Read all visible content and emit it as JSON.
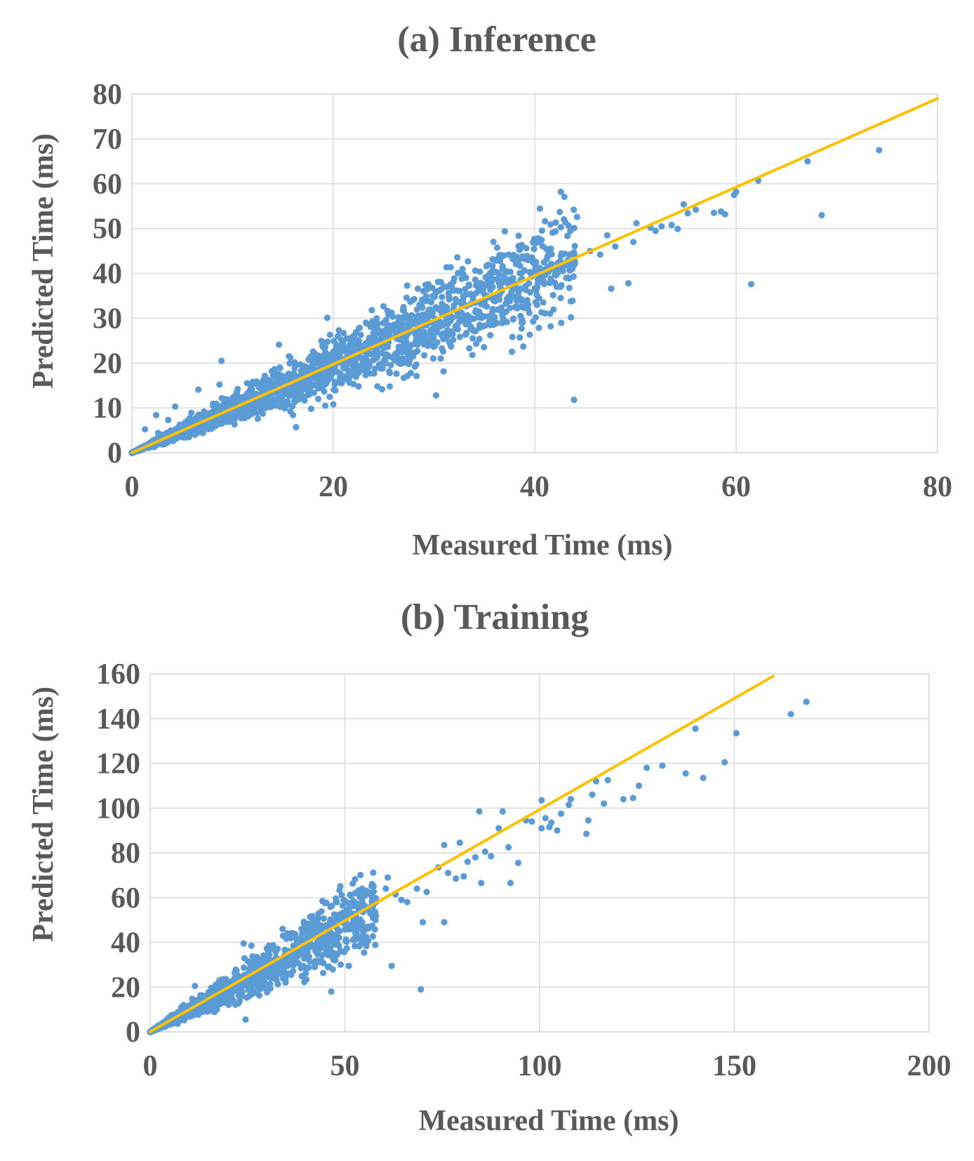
{
  "colors": {
    "points": "#5b9bd5",
    "fit_line": "#ffc000",
    "text": "#595959",
    "grid": "#d9d9d9"
  },
  "chart_data": [
    {
      "type": "scatter",
      "title": "(a) Inference",
      "xlabel": "Measured Time (ms)",
      "ylabel": "Predicted Time (ms)",
      "xlim": [
        0,
        80
      ],
      "ylim": [
        0,
        80
      ],
      "xticks": [
        0,
        20,
        40,
        60,
        80
      ],
      "yticks": [
        0,
        10,
        20,
        30,
        40,
        50,
        60,
        70,
        80
      ],
      "grid": true,
      "reference_line": {
        "x": [
          0,
          80
        ],
        "y": [
          0,
          79
        ]
      },
      "dense_band": {
        "x_range": [
          0,
          44
        ],
        "slope": 0.98,
        "spread_frac": 0.15,
        "count": 2600
      },
      "points": [
        [
          74.2,
          67.5
        ],
        [
          67.1,
          65.0
        ],
        [
          68.5,
          53.0
        ],
        [
          61.5,
          37.6
        ],
        [
          62.2,
          60.7
        ],
        [
          60.0,
          58.2
        ],
        [
          59.8,
          57.5
        ],
        [
          58.5,
          53.8
        ],
        [
          58.9,
          53.2
        ],
        [
          57.8,
          53.5
        ],
        [
          56.0,
          54.2
        ],
        [
          55.2,
          53.4
        ],
        [
          54.8,
          55.4
        ],
        [
          54.2,
          49.9
        ],
        [
          53.6,
          50.8
        ],
        [
          52.6,
          50.5
        ],
        [
          52.0,
          49.5
        ],
        [
          51.5,
          50.2
        ],
        [
          50.1,
          51.2
        ],
        [
          49.8,
          47.0
        ],
        [
          49.3,
          37.8
        ],
        [
          48.0,
          46.0
        ],
        [
          47.6,
          36.6
        ],
        [
          47.2,
          48.5
        ],
        [
          46.5,
          44.2
        ],
        [
          45.5,
          45.0
        ],
        [
          44.2,
          52.6
        ],
        [
          43.9,
          11.8
        ],
        [
          43.6,
          30.2
        ],
        [
          42.6,
          58.2
        ],
        [
          42.8,
          40.5
        ],
        [
          41.6,
          45.5
        ],
        [
          40.5,
          41.2
        ],
        [
          39.8,
          40.0
        ],
        [
          38.8,
          43.8
        ],
        [
          38.4,
          48.4
        ],
        [
          38.6,
          30.5
        ],
        [
          37.4,
          44.2
        ],
        [
          36.8,
          41.0
        ],
        [
          35.2,
          41.6
        ],
        [
          34.8,
          33.2
        ],
        [
          34.1,
          38.6
        ],
        [
          32.8,
          32.8
        ],
        [
          31.5,
          34.2
        ],
        [
          30.2,
          12.8
        ],
        [
          29.6,
          32.0
        ],
        [
          28.3,
          28.5
        ],
        [
          28.1,
          19.2
        ],
        [
          27.5,
          19.8
        ],
        [
          26.8,
          28.6
        ],
        [
          25.3,
          26.4
        ],
        [
          24.3,
          28.4
        ],
        [
          23.4,
          20.5
        ],
        [
          22.5,
          23.0
        ],
        [
          21.5,
          18.4
        ],
        [
          20.2,
          19.5
        ],
        [
          19.4,
          30.1
        ],
        [
          19.2,
          10.5
        ],
        [
          18.5,
          12.0
        ],
        [
          17.8,
          9.8
        ],
        [
          16.8,
          18.2
        ],
        [
          16.2,
          16.5
        ],
        [
          15.6,
          21.5
        ],
        [
          14.6,
          24.1
        ],
        [
          14.5,
          15.8
        ],
        [
          13.8,
          12.4
        ],
        [
          13.3,
          10.0
        ],
        [
          12.5,
          7.6
        ],
        [
          12.0,
          13.2
        ],
        [
          11.5,
          9.1
        ],
        [
          10.5,
          14.2
        ],
        [
          9.6,
          11.8
        ],
        [
          8.9,
          20.5
        ],
        [
          8.4,
          6.1
        ],
        [
          8.7,
          15.2
        ],
        [
          7.6,
          5.3
        ],
        [
          6.6,
          14.1
        ],
        [
          5.9,
          8.9
        ],
        [
          5.2,
          3.4
        ],
        [
          4.3,
          10.3
        ],
        [
          3.6,
          7.3
        ],
        [
          2.6,
          4.4
        ],
        [
          2.4,
          8.4
        ],
        [
          1.3,
          5.2
        ],
        [
          0.8,
          0.9
        ],
        [
          0.3,
          0.4
        ],
        [
          16.3,
          5.7
        ],
        [
          16.0,
          8.4
        ],
        [
          20.0,
          10.8
        ],
        [
          31.4,
          29.8
        ]
      ]
    },
    {
      "type": "scatter",
      "title": "(b) Training",
      "xlabel": "Measured Time (ms)",
      "ylabel": "Predicted Time (ms)",
      "xlim": [
        0,
        200
      ],
      "ylim": [
        0,
        160
      ],
      "xticks": [
        0,
        50,
        100,
        150,
        200
      ],
      "yticks": [
        0,
        20,
        40,
        60,
        80,
        100,
        120,
        140,
        160
      ],
      "grid": true,
      "reference_line": {
        "x": [
          0,
          160
        ],
        "y": [
          0,
          159
        ]
      },
      "dense_band": {
        "x_range": [
          0,
          58
        ],
        "slope": 0.95,
        "spread_frac": 0.17,
        "count": 1500
      },
      "points": [
        [
          168.5,
          147.5
        ],
        [
          164.5,
          142.0
        ],
        [
          150.5,
          133.5
        ],
        [
          147.5,
          120.5
        ],
        [
          142.0,
          113.5
        ],
        [
          140.0,
          135.5
        ],
        [
          137.5,
          115.5
        ],
        [
          131.5,
          119.0
        ],
        [
          127.5,
          118.0
        ],
        [
          125.5,
          110.0
        ],
        [
          124.0,
          104.5
        ],
        [
          121.5,
          104.0
        ],
        [
          117.5,
          112.5
        ],
        [
          116.5,
          102.0
        ],
        [
          114.5,
          112.0
        ],
        [
          112.5,
          94.5
        ],
        [
          112.0,
          88.5
        ],
        [
          113.5,
          106.0
        ],
        [
          108.0,
          104.0
        ],
        [
          107.5,
          101.5
        ],
        [
          105.5,
          97.5
        ],
        [
          104.5,
          90.0
        ],
        [
          103.0,
          93.5
        ],
        [
          102.5,
          91.5
        ],
        [
          101.5,
          95.5
        ],
        [
          100.5,
          103.5
        ],
        [
          100.5,
          91.0
        ],
        [
          98.0,
          94.0
        ],
        [
          96.5,
          94.5
        ],
        [
          94.5,
          75.5
        ],
        [
          92.5,
          66.5
        ],
        [
          92.0,
          82.5
        ],
        [
          90.5,
          98.5
        ],
        [
          89.5,
          91.0
        ],
        [
          87.5,
          78.5
        ],
        [
          86.0,
          80.5
        ],
        [
          85.0,
          66.5
        ],
        [
          84.5,
          98.5
        ],
        [
          83.5,
          78.0
        ],
        [
          81.5,
          76.0
        ],
        [
          80.5,
          69.5
        ],
        [
          79.5,
          84.5
        ],
        [
          78.5,
          68.5
        ],
        [
          76.5,
          71.0
        ],
        [
          75.5,
          83.5
        ],
        [
          75.5,
          49.0
        ],
        [
          74.0,
          73.5
        ],
        [
          71.0,
          62.5
        ],
        [
          70.0,
          49.0
        ],
        [
          69.5,
          19.0
        ],
        [
          68.5,
          64.0
        ],
        [
          66.0,
          58.0
        ],
        [
          64.5,
          59.0
        ],
        [
          63.0,
          61.5
        ],
        [
          62.0,
          29.5
        ],
        [
          61.0,
          69.0
        ],
        [
          60.5,
          64.0
        ],
        [
          58.0,
          58.0
        ],
        [
          57.0,
          66.0
        ],
        [
          56.5,
          53.0
        ],
        [
          55.0,
          45.5
        ],
        [
          52.5,
          52.0
        ],
        [
          51.0,
          29.5
        ],
        [
          50.0,
          48.0
        ],
        [
          47.5,
          32.0
        ],
        [
          46.5,
          18.0
        ],
        [
          44.5,
          47.0
        ],
        [
          43.5,
          37.0
        ],
        [
          41.0,
          31.5
        ],
        [
          39.5,
          48.5
        ],
        [
          37.5,
          34.0
        ],
        [
          35.0,
          34.5
        ],
        [
          34.0,
          46.0
        ],
        [
          32.0,
          26.0
        ],
        [
          30.5,
          38.5
        ],
        [
          28.5,
          22.0
        ],
        [
          27.0,
          28.5
        ],
        [
          26.0,
          38.5
        ],
        [
          24.5,
          5.5
        ],
        [
          24.0,
          39.5
        ],
        [
          22.5,
          21.0
        ],
        [
          21.0,
          13.5
        ],
        [
          19.5,
          23.5
        ],
        [
          17.0,
          13.5
        ],
        [
          16.0,
          16.5
        ],
        [
          14.5,
          11.0
        ],
        [
          13.5,
          11.5
        ],
        [
          11.5,
          20.5
        ],
        [
          10.0,
          8.0
        ],
        [
          8.5,
          7.0
        ],
        [
          7.0,
          5.5
        ],
        [
          5.5,
          7.5
        ],
        [
          4.0,
          2.5
        ],
        [
          2.5,
          2.0
        ],
        [
          1.0,
          1.0
        ],
        [
          0.5,
          0.2
        ]
      ]
    }
  ]
}
